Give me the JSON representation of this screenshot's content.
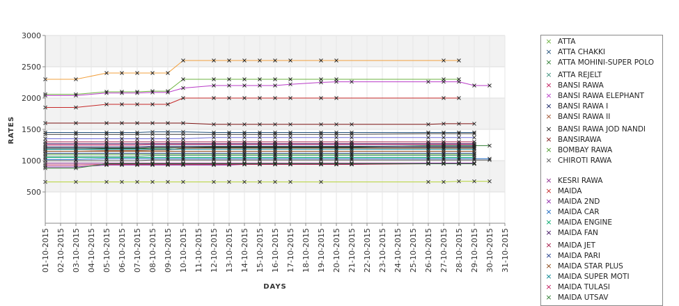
{
  "chart_data": {
    "type": "line",
    "title": "",
    "xlabel": "DAYS",
    "ylabel": "RATES",
    "ylim": [
      0,
      3000
    ],
    "yticks": [
      500,
      1000,
      1500,
      2000,
      2500,
      3000
    ],
    "grid": true,
    "legend_position": "right",
    "categories": [
      "01-10-2015",
      "02-10-2015",
      "03-10-2015",
      "04-10-2015",
      "05-10-2015",
      "06-10-2015",
      "07-10-2015",
      "08-10-2015",
      "09-10-2015",
      "10-10-2015",
      "11-10-2015",
      "12-10-2015",
      "13-10-2015",
      "14-10-2015",
      "15-10-2015",
      "16-10-2015",
      "17-10-2015",
      "18-10-2015",
      "19-10-2015",
      "20-10-2015",
      "21-10-2015",
      "22-10-2015",
      "23-10-2015",
      "24-10-2015",
      "25-10-2015",
      "26-10-2015",
      "27-10-2015",
      "28-10-2015",
      "29-10-2015",
      "30-10-2015",
      "31-10-2015"
    ],
    "series": [
      {
        "name": "ATTA",
        "color": "#6db33f",
        "values": [
          2060,
          null,
          2060,
          null,
          2100,
          2100,
          2100,
          2110,
          2110,
          2300,
          null,
          2300,
          2300,
          2300,
          2300,
          2300,
          2300,
          null,
          2300,
          2300,
          null,
          null,
          null,
          null,
          null,
          null,
          2300,
          2300,
          null,
          null,
          null
        ]
      },
      {
        "name": "ATTA CHAKKI",
        "color": "#1f4e79",
        "values": [
          1450,
          null,
          1450,
          null,
          1450,
          1450,
          1450,
          1460,
          1460,
          1460,
          null,
          1450,
          1450,
          1450,
          1450,
          1450,
          1450,
          null,
          1450,
          1450,
          1450,
          null,
          null,
          null,
          null,
          1450,
          1450,
          1450,
          1450,
          null,
          null
        ]
      },
      {
        "name": "ATTA MOHINI-SUPER POLO",
        "color": "#2e7d32",
        "values": [
          1180,
          null,
          1180,
          null,
          1190,
          1190,
          1190,
          1200,
          1200,
          1210,
          null,
          1220,
          1220,
          1220,
          1220,
          1220,
          1220,
          null,
          1220,
          1220,
          1220,
          null,
          null,
          null,
          null,
          1240,
          1240,
          1240,
          1240,
          1240,
          null
        ]
      },
      {
        "name": "ATTA REJELT",
        "color": "#3a8f7a",
        "values": [
          1070,
          null,
          1070,
          null,
          1070,
          1070,
          1070,
          1080,
          1080,
          1080,
          null,
          1080,
          1080,
          1080,
          1080,
          1080,
          1080,
          null,
          1080,
          1080,
          1080,
          null,
          null,
          null,
          null,
          1080,
          1080,
          1080,
          1080,
          null,
          null
        ]
      },
      {
        "name": "BANSI RAWA",
        "color": "#c2185b",
        "values": [
          1250,
          null,
          1250,
          null,
          1250,
          1250,
          1250,
          1260,
          1260,
          1260,
          null,
          1260,
          1260,
          1260,
          1260,
          1260,
          1260,
          null,
          1260,
          1260,
          1260,
          null,
          null,
          null,
          null,
          1260,
          1260,
          1260,
          1260,
          null,
          null
        ]
      },
      {
        "name": "BANSI RAWA ELEPHANT",
        "color": "#b83ac7",
        "values": [
          2040,
          null,
          2040,
          null,
          2080,
          2080,
          2080,
          2090,
          2090,
          2160,
          null,
          2200,
          2200,
          2200,
          2200,
          2200,
          2220,
          null,
          2250,
          2260,
          2260,
          null,
          null,
          null,
          null,
          2260,
          2260,
          2260,
          2200,
          2200,
          null
        ]
      },
      {
        "name": "BANSI RAWA I",
        "color": "#0d1b5e",
        "values": [
          1220,
          null,
          1220,
          null,
          1220,
          1220,
          1220,
          1230,
          1230,
          1230,
          null,
          1230,
          1230,
          1230,
          1230,
          1230,
          1230,
          null,
          1230,
          1230,
          1230,
          null,
          null,
          null,
          null,
          1230,
          1230,
          1230,
          1230,
          null,
          null
        ]
      },
      {
        "name": "BANSI RAWA II",
        "color": "#a0522d",
        "values": [
          1150,
          null,
          1150,
          null,
          1160,
          1160,
          1160,
          1170,
          1170,
          1200,
          null,
          1200,
          1200,
          1200,
          1200,
          1200,
          1200,
          null,
          1200,
          1200,
          1200,
          null,
          null,
          null,
          null,
          1200,
          1200,
          1200,
          1200,
          null,
          null
        ]
      },
      {
        "name": "BANSI RAWA JOD NANDI",
        "color": "#1a1a1a",
        "values": [
          1200,
          null,
          1200,
          null,
          1200,
          1200,
          1200,
          1210,
          1210,
          1210,
          null,
          1210,
          1210,
          1210,
          1210,
          1210,
          1210,
          null,
          1210,
          1210,
          1210,
          null,
          null,
          null,
          null,
          1210,
          1210,
          1210,
          1210,
          null,
          null
        ]
      },
      {
        "name": "BANSIRAWA",
        "color": "#7b1111",
        "values": [
          1600,
          null,
          1600,
          null,
          1600,
          1600,
          1600,
          1600,
          1600,
          1600,
          null,
          1580,
          1580,
          1580,
          1580,
          1580,
          1580,
          null,
          1580,
          1580,
          1580,
          null,
          null,
          null,
          null,
          1580,
          1590,
          1590,
          1590,
          null,
          null
        ]
      },
      {
        "name": "BOMBAY RAWA",
        "color": "#4c9a2a",
        "values": [
          1100,
          null,
          1100,
          null,
          1100,
          1100,
          1100,
          1100,
          1100,
          1100,
          null,
          1100,
          1100,
          1100,
          1100,
          1100,
          1100,
          null,
          1100,
          1100,
          1100,
          null,
          null,
          null,
          null,
          1100,
          1100,
          1100,
          1100,
          null,
          null
        ]
      },
      {
        "name": "CHIROTI RAWA",
        "color": "#555555",
        "values": [
          1000,
          null,
          1000,
          null,
          1000,
          1000,
          1000,
          1010,
          1010,
          1010,
          null,
          1010,
          1010,
          1010,
          1010,
          1010,
          1010,
          null,
          1010,
          1010,
          1010,
          null,
          null,
          null,
          null,
          1010,
          1010,
          1010,
          1010,
          1010,
          null
        ]
      },
      {
        "name": "KESRI RAWA",
        "color": "#8e2a8e",
        "values": [
          960,
          null,
          960,
          null,
          960,
          960,
          960,
          960,
          960,
          960,
          null,
          960,
          960,
          960,
          960,
          960,
          960,
          null,
          960,
          960,
          960,
          null,
          null,
          null,
          null,
          960,
          960,
          960,
          960,
          null,
          null
        ]
      },
      {
        "name": "MAIDA",
        "color": "#c62828",
        "values": [
          1850,
          null,
          1850,
          null,
          1900,
          1900,
          1900,
          1900,
          1900,
          2000,
          null,
          2000,
          2000,
          2000,
          2000,
          2000,
          2000,
          null,
          2000,
          2000,
          null,
          null,
          null,
          null,
          null,
          null,
          2000,
          2000,
          null,
          null,
          null
        ]
      },
      {
        "name": "MAIDA 2ND",
        "color": "#8e24aa",
        "values": [
          900,
          null,
          900,
          null,
          930,
          930,
          930,
          930,
          930,
          930,
          null,
          930,
          930,
          940,
          940,
          940,
          940,
          null,
          940,
          940,
          940,
          null,
          null,
          null,
          null,
          960,
          960,
          960,
          960,
          null,
          null
        ]
      },
      {
        "name": "MAIDA CAR",
        "color": "#1565c0",
        "values": [
          1020,
          null,
          1020,
          null,
          1030,
          1030,
          1030,
          1030,
          1030,
          1030,
          null,
          1030,
          1030,
          1030,
          1030,
          1030,
          1030,
          null,
          1030,
          1030,
          1030,
          null,
          null,
          null,
          null,
          1030,
          1030,
          1030,
          1030,
          1030,
          null
        ]
      },
      {
        "name": "MAIDA ENGINE",
        "color": "#00a86b",
        "values": [
          1050,
          null,
          1050,
          null,
          1050,
          1050,
          1050,
          1050,
          1050,
          1050,
          null,
          1050,
          1050,
          1050,
          1050,
          1050,
          1050,
          null,
          1050,
          1050,
          1050,
          null,
          null,
          null,
          null,
          1050,
          1050,
          1050,
          1050,
          null,
          null
        ]
      },
      {
        "name": "MAIDA FAN",
        "color": "#3b0a5c",
        "values": [
          1270,
          null,
          1270,
          null,
          1270,
          1270,
          1270,
          1270,
          1270,
          1270,
          null,
          1270,
          1270,
          1270,
          1270,
          1270,
          1270,
          null,
          1270,
          1270,
          1270,
          null,
          null,
          null,
          null,
          1270,
          1270,
          1270,
          1270,
          null,
          null
        ]
      },
      {
        "name": "MAIDA JET",
        "color": "#a31545",
        "values": [
          1300,
          null,
          1300,
          null,
          1300,
          1300,
          1300,
          1300,
          1300,
          1300,
          null,
          1300,
          1300,
          1300,
          1300,
          1300,
          1300,
          null,
          1300,
          1300,
          1300,
          null,
          null,
          null,
          null,
          1300,
          1300,
          1300,
          1300,
          null,
          null
        ]
      },
      {
        "name": "MAIDA PARI",
        "color": "#1e3a8a",
        "values": [
          1120,
          null,
          1120,
          null,
          1120,
          1120,
          1120,
          1120,
          1120,
          1120,
          null,
          1120,
          1120,
          1120,
          1120,
          1120,
          1120,
          null,
          1120,
          1120,
          1120,
          null,
          null,
          null,
          null,
          1120,
          1120,
          1120,
          1120,
          null,
          null
        ]
      },
      {
        "name": "MAIDA STAR PLUS",
        "color": "#8b4513",
        "values": [
          1150,
          null,
          1150,
          null,
          1150,
          1150,
          1150,
          1150,
          1150,
          1150,
          null,
          1150,
          1150,
          1150,
          1150,
          1150,
          1150,
          null,
          1150,
          1150,
          1150,
          null,
          null,
          null,
          null,
          1150,
          1150,
          1150,
          1150,
          null,
          null
        ]
      },
      {
        "name": "MAIDA SUPER MOTI",
        "color": "#00838f",
        "values": [
          1180,
          null,
          1180,
          null,
          1180,
          1180,
          1180,
          1180,
          1180,
          1180,
          null,
          1180,
          1180,
          1180,
          1180,
          1180,
          1180,
          null,
          1180,
          1180,
          1180,
          null,
          null,
          null,
          null,
          1180,
          1180,
          1180,
          1180,
          null,
          null
        ]
      },
      {
        "name": "MAIDA TULASI",
        "color": "#c2185b",
        "values": [
          930,
          null,
          930,
          null,
          940,
          940,
          940,
          940,
          940,
          940,
          null,
          940,
          940,
          940,
          940,
          940,
          940,
          null,
          940,
          940,
          940,
          null,
          null,
          null,
          null,
          950,
          950,
          950,
          950,
          null,
          null
        ]
      },
      {
        "name": "MAIDA UTSAV",
        "color": "#2e7d32",
        "values": [
          880,
          null,
          880,
          null,
          950,
          950,
          950,
          950,
          950,
          950,
          null,
          950,
          950,
          950,
          950,
          950,
          950,
          null,
          950,
          950,
          950,
          null,
          null,
          null,
          null,
          950,
          950,
          950,
          950,
          null,
          null
        ]
      },
      {
        "name": "",
        "color": "#f2a03d",
        "values": [
          2300,
          null,
          2300,
          null,
          2400,
          2400,
          2400,
          2400,
          2400,
          2600,
          null,
          2600,
          2600,
          2600,
          2600,
          2600,
          2600,
          null,
          2600,
          2600,
          null,
          null,
          null,
          null,
          null,
          null,
          2600,
          2600,
          null,
          null,
          null
        ]
      },
      {
        "name": "",
        "color": "#b5d334",
        "values": [
          660,
          null,
          660,
          null,
          660,
          660,
          660,
          660,
          660,
          660,
          null,
          660,
          660,
          660,
          660,
          660,
          660,
          null,
          660,
          null,
          null,
          null,
          null,
          null,
          null,
          660,
          660,
          670,
          670,
          670,
          null
        ]
      },
      {
        "name": "",
        "color": "#3a3a3a",
        "values": [
          1420,
          null,
          1420,
          null,
          1420,
          1420,
          1420,
          1420,
          1420,
          1420,
          null,
          1420,
          1420,
          1420,
          1420,
          1420,
          1420,
          null,
          1420,
          1420,
          1420,
          null,
          null,
          null,
          null,
          1430,
          1430,
          1430,
          1430,
          null,
          null
        ]
      },
      {
        "name": "",
        "color": "#6b6bd6",
        "values": [
          1350,
          null,
          1350,
          null,
          1350,
          1350,
          1350,
          1350,
          1350,
          1350,
          null,
          1370,
          1370,
          1370,
          1370,
          1370,
          1370,
          null,
          1370,
          1370,
          1370,
          null,
          null,
          null,
          null,
          1370,
          1370,
          1370,
          1370,
          null,
          null
        ]
      }
    ]
  }
}
